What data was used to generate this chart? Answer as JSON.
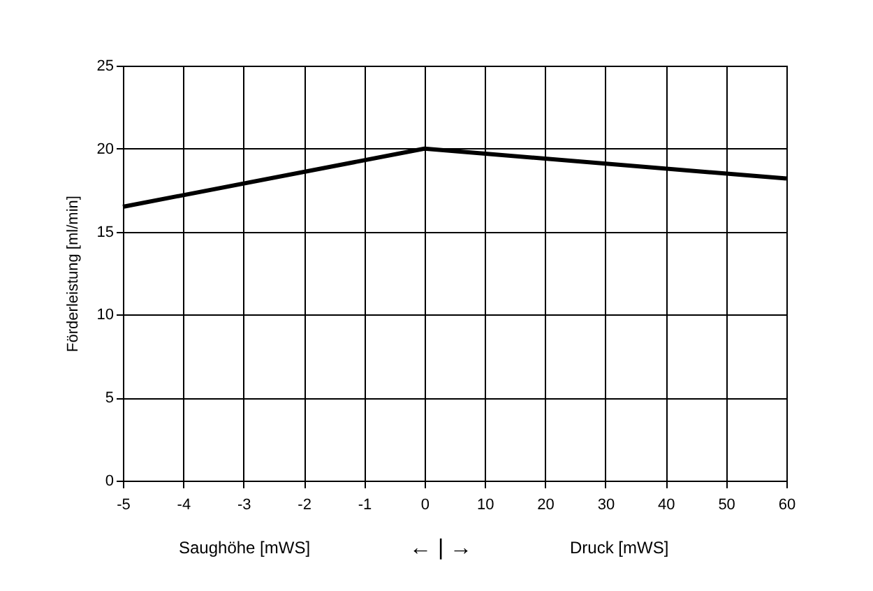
{
  "chart_data": {
    "type": "line",
    "ylabel": "Förderleistung [ml/min]",
    "categories": [
      "-5",
      "-4",
      "-3",
      "-2",
      "-1",
      "0",
      "10",
      "20",
      "30",
      "40",
      "50",
      "60"
    ],
    "series": [
      {
        "color": "#000000",
        "x": [
          "-5",
          "0",
          "60"
        ],
        "values": [
          16.5,
          20,
          18.2
        ]
      }
    ],
    "ylim": [
      0,
      25
    ],
    "yticks": [
      0,
      5,
      10,
      15,
      20,
      25
    ],
    "grid": true,
    "marker": "none",
    "line_style": "solid",
    "annotations": [
      "Saughöhe [mWS]",
      "←  |  →",
      "Druck [mWS]"
    ]
  }
}
